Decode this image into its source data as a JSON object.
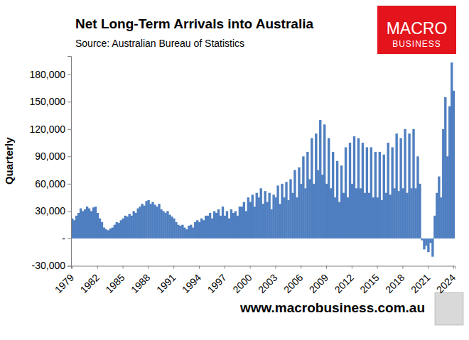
{
  "chart_data": {
    "type": "bar",
    "title": "Net Long-Term Arrivals into Australia",
    "subtitle": "Source: Australian Bureau of Statistics",
    "y_label": "Quarterly",
    "annotations": [
      "MACRO",
      "BUSINESS",
      "www.macrobusiness.com.au"
    ],
    "color": "#4f7fc0",
    "grid": false,
    "categories": [
      "1979",
      null,
      null,
      null,
      null,
      null,
      null,
      null,
      null,
      null,
      null,
      null,
      "1982",
      null,
      null,
      null,
      null,
      null,
      null,
      null,
      null,
      null,
      null,
      null,
      "1985",
      null,
      null,
      null,
      null,
      null,
      null,
      null,
      null,
      null,
      null,
      null,
      "1988",
      null,
      null,
      null,
      null,
      null,
      null,
      null,
      null,
      null,
      null,
      null,
      "1991",
      null,
      null,
      null,
      null,
      null,
      null,
      null,
      null,
      null,
      null,
      null,
      "1994",
      null,
      null,
      null,
      null,
      null,
      null,
      null,
      null,
      null,
      null,
      null,
      "1997",
      null,
      null,
      null,
      null,
      null,
      null,
      null,
      null,
      null,
      null,
      null,
      "2000",
      null,
      null,
      null,
      null,
      null,
      null,
      null,
      null,
      null,
      null,
      null,
      "2003",
      null,
      null,
      null,
      null,
      null,
      null,
      null,
      null,
      null,
      null,
      null,
      "2006",
      null,
      null,
      null,
      null,
      null,
      null,
      null,
      null,
      null,
      null,
      null,
      "2009",
      null,
      null,
      null,
      null,
      null,
      null,
      null,
      null,
      null,
      null,
      null,
      "2012",
      null,
      null,
      null,
      null,
      null,
      null,
      null,
      null,
      null,
      null,
      null,
      "2015",
      null,
      null,
      null,
      null,
      null,
      null,
      null,
      null,
      null,
      null,
      null,
      "2018",
      null,
      null,
      null,
      null,
      null,
      null,
      null,
      null,
      null,
      null,
      null,
      "2021",
      null,
      null,
      null,
      null,
      null,
      null,
      null,
      null,
      null,
      null,
      null,
      "2024"
    ],
    "values": [
      22000,
      20000,
      25000,
      28000,
      33000,
      30000,
      32000,
      35000,
      33000,
      30000,
      34000,
      35000,
      28000,
      22000,
      18000,
      12000,
      10000,
      9000,
      11000,
      12000,
      15000,
      18000,
      17000,
      20000,
      22000,
      25000,
      24000,
      27000,
      25000,
      30000,
      28000,
      33000,
      35000,
      38000,
      36000,
      41000,
      42000,
      38000,
      40000,
      37000,
      35000,
      38000,
      32000,
      30000,
      28000,
      30000,
      26000,
      24000,
      22000,
      18000,
      15000,
      14000,
      15000,
      12000,
      10000,
      14000,
      15000,
      12000,
      18000,
      20000,
      18000,
      22000,
      20000,
      25000,
      25000,
      28000,
      22000,
      30000,
      28000,
      32000,
      25000,
      35000,
      25000,
      30000,
      22000,
      32000,
      28000,
      30000,
      25000,
      35000,
      35000,
      40000,
      30000,
      45000,
      40000,
      48000,
      35000,
      50000,
      45000,
      55000,
      38000,
      52000,
      40000,
      50000,
      32000,
      48000,
      45000,
      58000,
      38000,
      60000,
      45000,
      62000,
      42000,
      65000,
      50000,
      75000,
      45000,
      78000,
      60000,
      90000,
      55000,
      95000,
      65000,
      110000,
      60000,
      115000,
      75000,
      130000,
      70000,
      125000,
      60000,
      110000,
      55000,
      95000,
      45000,
      85000,
      40000,
      80000,
      50000,
      100000,
      45000,
      105000,
      60000,
      112000,
      55000,
      110000,
      55000,
      105000,
      50000,
      100000,
      50000,
      100000,
      45000,
      95000,
      45000,
      95000,
      42000,
      92000,
      50000,
      105000,
      48000,
      100000,
      55000,
      115000,
      52000,
      110000,
      55000,
      120000,
      50000,
      115000,
      55000,
      120000,
      55000,
      90000,
      60000,
      -2000,
      -12000,
      -8000,
      -15000,
      -5000,
      -20000,
      25000,
      50000,
      68000,
      45000,
      120000,
      155000,
      90000,
      145000,
      193000,
      162000
    ],
    "ylim": [
      -30000,
      200000
    ],
    "yticks": [
      {
        "value": -30000,
        "label": "-30,000"
      },
      {
        "value": 0,
        "label": "-"
      },
      {
        "value": 30000,
        "label": "30,000"
      },
      {
        "value": 60000,
        "label": "60,000"
      },
      {
        "value": 90000,
        "label": "90,000"
      },
      {
        "value": 120000,
        "label": "120,000"
      },
      {
        "value": 150000,
        "label": "150,000"
      },
      {
        "value": 180000,
        "label": "180,000"
      }
    ]
  }
}
